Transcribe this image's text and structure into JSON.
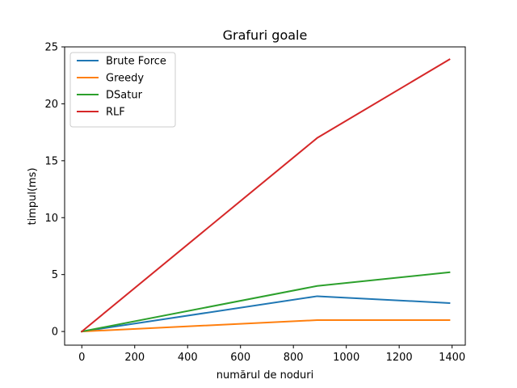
{
  "chart_data": {
    "type": "line",
    "title": "Grafuri goale",
    "xlabel": "numărul de noduri",
    "ylabel": "timpul(ms)",
    "xlim": [
      -65,
      1450
    ],
    "ylim": [
      -1.2,
      25
    ],
    "xticks": [
      0,
      200,
      400,
      600,
      800,
      1000,
      1200,
      1400
    ],
    "yticks": [
      0,
      5,
      10,
      15,
      20,
      25
    ],
    "grid": false,
    "legend_position": "top-left",
    "x": [
      0,
      890,
      1390
    ],
    "series": [
      {
        "name": "Brute Force",
        "color": "#1f77b4",
        "values": [
          0,
          3.1,
          2.5
        ]
      },
      {
        "name": "Greedy",
        "color": "#ff7f0e",
        "values": [
          0,
          1.0,
          1.0
        ]
      },
      {
        "name": "DSatur",
        "color": "#2ca02c",
        "values": [
          0,
          4.0,
          5.2
        ]
      },
      {
        "name": "RLF",
        "color": "#d62728",
        "values": [
          0,
          17.0,
          23.9
        ]
      }
    ]
  }
}
